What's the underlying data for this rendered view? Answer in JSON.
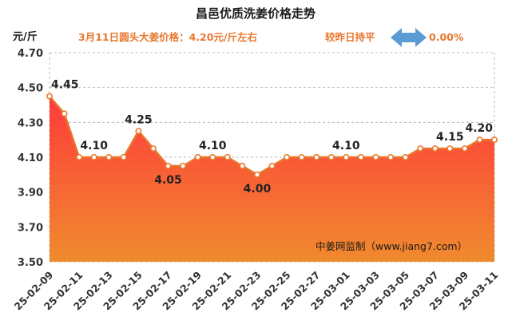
{
  "chart_data": {
    "type": "area",
    "title": "昌邑优质洗姜价格走势",
    "unit_label": "元/斤",
    "headline": {
      "price_text": "3月11日圆头大姜价格：4.20元/斤左右",
      "compare_text": "较昨日持平",
      "change_text": "0.00%"
    },
    "watermark": "中姜网监制（www.jiang7.com）",
    "ylim": [
      3.5,
      4.7
    ],
    "yticks": [
      "3.50",
      "3.70",
      "3.90",
      "4.10",
      "4.30",
      "4.50",
      "4.70"
    ],
    "grid": true,
    "x": [
      "25-02-09",
      "25-02-10",
      "25-02-11",
      "25-02-12",
      "25-02-13",
      "25-02-14",
      "25-02-15",
      "25-02-16",
      "25-02-17",
      "25-02-18",
      "25-02-19",
      "25-02-20",
      "25-02-21",
      "25-02-22",
      "25-02-23",
      "25-02-24",
      "25-02-25",
      "25-02-26",
      "25-02-27",
      "25-02-28",
      "25-03-01",
      "25-03-02",
      "25-03-03",
      "25-03-04",
      "25-03-05",
      "25-03-06",
      "25-03-07",
      "25-03-08",
      "25-03-09",
      "25-03-10",
      "25-03-11"
    ],
    "xtick_labels": [
      "25-02-09",
      "25-02-11",
      "25-02-13",
      "25-02-15",
      "25-02-17",
      "25-02-19",
      "25-02-21",
      "25-02-23",
      "25-02-25",
      "25-02-27",
      "25-03-01",
      "25-03-03",
      "25-03-05",
      "25-03-07",
      "25-03-09",
      "25-03-11"
    ],
    "values": [
      4.45,
      4.35,
      4.1,
      4.1,
      4.1,
      4.1,
      4.25,
      4.15,
      4.05,
      4.05,
      4.1,
      4.1,
      4.1,
      4.05,
      4.0,
      4.05,
      4.1,
      4.1,
      4.1,
      4.1,
      4.1,
      4.1,
      4.1,
      4.1,
      4.1,
      4.15,
      4.15,
      4.15,
      4.15,
      4.2,
      4.2
    ],
    "data_labels": [
      {
        "index": 0,
        "text": "4.45"
      },
      {
        "index": 3,
        "text": "4.10"
      },
      {
        "index": 6,
        "text": "4.25"
      },
      {
        "index": 8,
        "text": "4.05"
      },
      {
        "index": 11,
        "text": "4.10"
      },
      {
        "index": 14,
        "text": "4.00"
      },
      {
        "index": 20,
        "text": "4.10"
      },
      {
        "index": 27,
        "text": "4.15"
      },
      {
        "index": 30,
        "text": "4.20"
      }
    ],
    "colors": {
      "title": "#1a1a1a",
      "accent": "#e8772e",
      "line": "#e8772e",
      "marker_fill": "#ffffff",
      "fill_top": "#ff3b3b",
      "fill_bottom": "#f08a2e",
      "arrow": "#5b9bd5",
      "grid": "#bbbbbb",
      "axis_text": "#333333"
    }
  }
}
